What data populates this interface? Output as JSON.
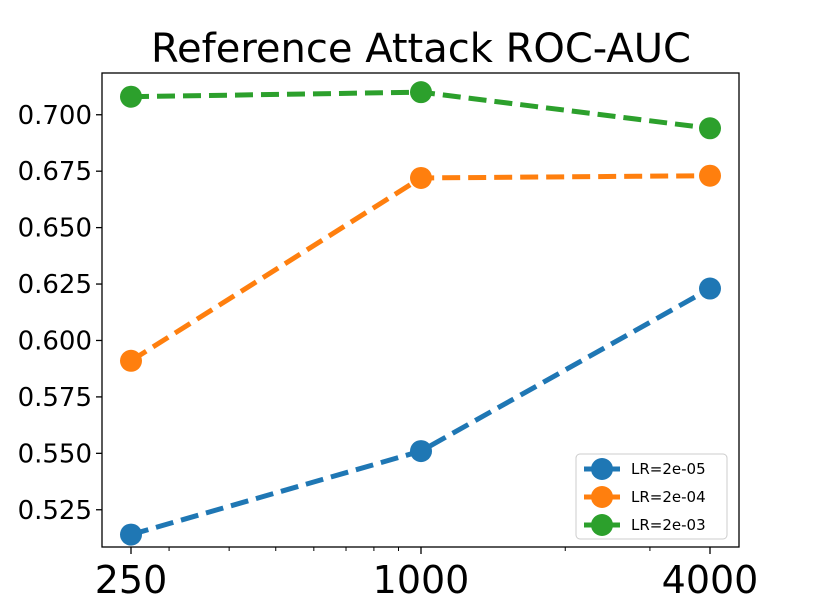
{
  "chart_data": {
    "type": "line",
    "title": "Reference Attack ROC-AUC",
    "xlabel": "",
    "ylabel": "",
    "xscale": "log",
    "x": [
      250,
      1000,
      4000
    ],
    "x_tick_labels": [
      "250",
      "1000",
      "4000"
    ],
    "y_tick_labels": [
      "0.525",
      "0.550",
      "0.575",
      "0.600",
      "0.625",
      "0.650",
      "0.675",
      "0.700"
    ],
    "ylim": [
      0.5085,
      0.7185
    ],
    "grid": false,
    "legend_position": "bottom-right",
    "line_style": "dashed",
    "series": [
      {
        "name": "LR=2e-05",
        "color": "#1f77b4",
        "values": [
          0.514,
          0.551,
          0.623
        ]
      },
      {
        "name": "LR=2e-04",
        "color": "#ff7f0e",
        "values": [
          0.591,
          0.672,
          0.673
        ]
      },
      {
        "name": "LR=2e-03",
        "color": "#2ca02c",
        "values": [
          0.708,
          0.71,
          0.694
        ]
      }
    ]
  }
}
